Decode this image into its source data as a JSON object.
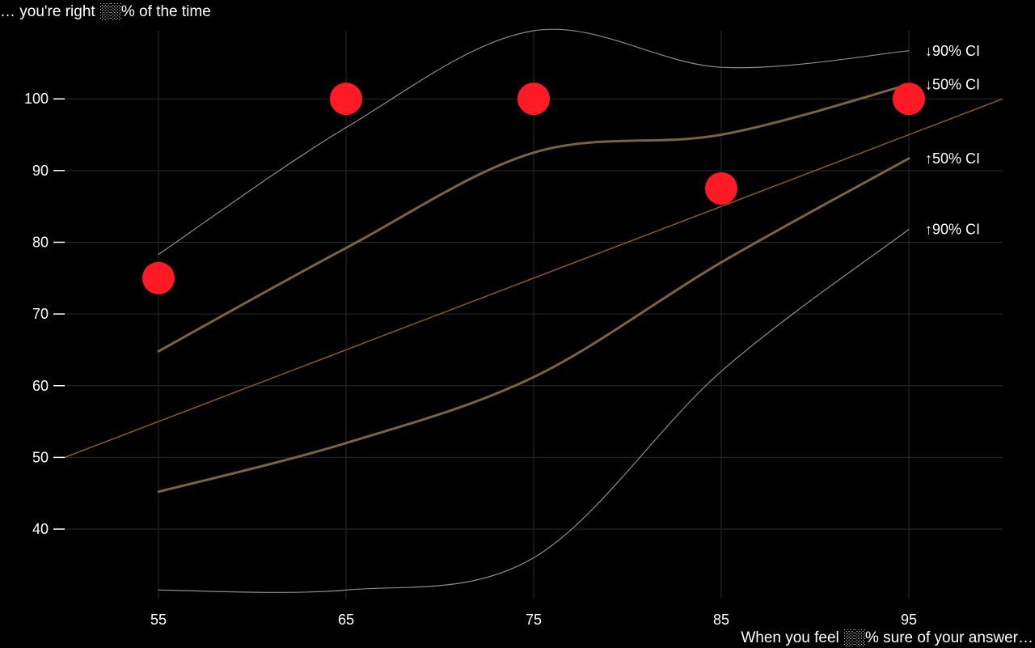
{
  "chart_data": {
    "type": "line",
    "ylabel": "… you're right ░░% of the time",
    "xlabel": "When you feel ░░% sure of your answer…",
    "x_ticks": [
      55,
      65,
      75,
      85,
      95
    ],
    "y_ticks": [
      40,
      50,
      60,
      70,
      80,
      90,
      100
    ],
    "xlim": [
      50,
      100
    ],
    "ylim": [
      30.3,
      109.5
    ],
    "grid": true,
    "points": {
      "x": [
        55,
        65,
        75,
        85,
        95
      ],
      "y": [
        75,
        100,
        100,
        87.5,
        100
      ],
      "color": "#ff1a24"
    },
    "reference_line": {
      "x": [
        50,
        100
      ],
      "y": [
        50,
        100
      ],
      "color": "#8a5a1e"
    },
    "series": [
      {
        "label": "↓90% CI",
        "x": [
          55,
          65,
          75,
          85,
          95
        ],
        "y": [
          78.3,
          96,
          109.5,
          104.4,
          106.7
        ],
        "color": "#8c8c8c",
        "width": 1.2
      },
      {
        "label": "↓50% CI",
        "x": [
          55,
          65,
          75,
          85,
          95
        ],
        "y": [
          64.8,
          79.2,
          92.5,
          95,
          102
        ],
        "color": "#7a6340",
        "width": 3
      },
      {
        "label": "↑50% CI",
        "x": [
          55,
          65,
          75,
          85,
          95
        ],
        "y": [
          45.2,
          52,
          61.2,
          77.2,
          91.7
        ],
        "color": "#7a6340",
        "width": 3
      },
      {
        "label": "↑90% CI",
        "x": [
          55,
          65,
          75,
          85,
          95
        ],
        "y": [
          31.5,
          31.5,
          36,
          62,
          81.8
        ],
        "color": "#8c8c8c",
        "width": 1.2
      }
    ],
    "band_labels": [
      {
        "text": "↓90% CI",
        "x": 95,
        "y": 106.7
      },
      {
        "text": "↓50% CI",
        "x": 95,
        "y": 102
      },
      {
        "text": "↑50% CI",
        "x": 95,
        "y": 91.7
      },
      {
        "text": "↑90% CI",
        "x": 95,
        "y": 81.8
      }
    ]
  }
}
